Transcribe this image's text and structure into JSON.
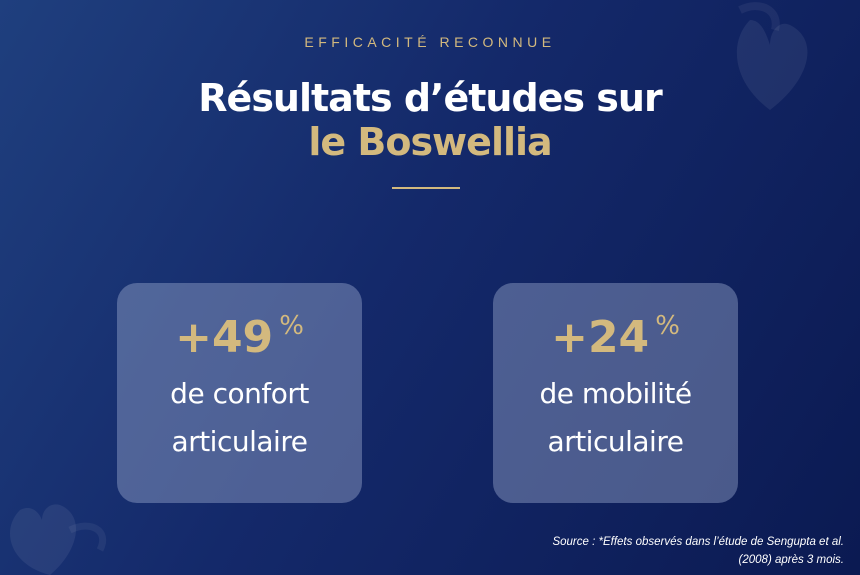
{
  "header": {
    "eyebrow": "EFFICACITÉ RECONNUE",
    "title_line1": "Résultats d’études sur",
    "title_line2": "le Boswellia"
  },
  "cards": [
    {
      "value": "+49",
      "unit": "%",
      "lines": [
        "de confort",
        "articulaire"
      ]
    },
    {
      "value": "+24",
      "unit": "%",
      "lines": [
        "de mobilité",
        "articulaire"
      ]
    }
  ],
  "source": {
    "lines": [
      "Source : *Effets observés dans l’étude de Sengupta et al.",
      "(2008) après 3 mois."
    ]
  }
}
